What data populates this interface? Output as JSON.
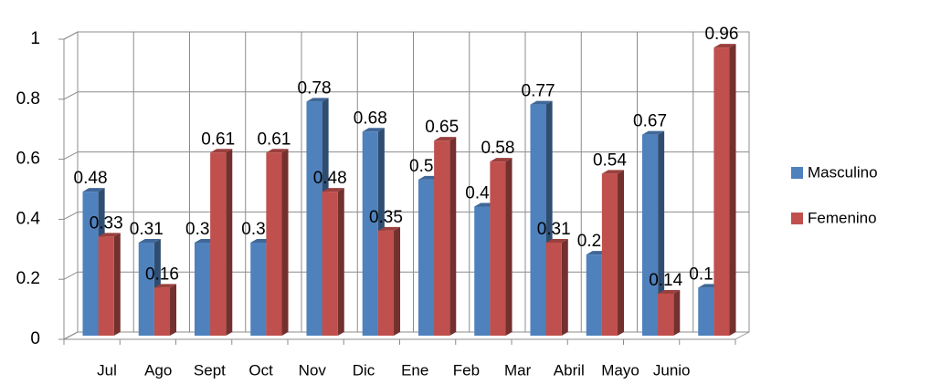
{
  "chart_data": {
    "type": "bar3d",
    "categories": [
      "Jul",
      "Ago",
      "Sept",
      "Oct",
      "Nov",
      "Dic",
      "Ene",
      "Feb",
      "Mar",
      "Abril",
      "Mayo",
      "Junio"
    ],
    "series": [
      {
        "name": "Masculino",
        "color": "#4f81bd",
        "values": [
          0.48,
          0.31,
          0.31,
          0.31,
          0.78,
          0.68,
          0.52,
          0.43,
          0.77,
          0.27,
          0.67,
          0.16
        ]
      },
      {
        "name": "Femenino",
        "color": "#c0504d",
        "values": [
          0.33,
          0.16,
          0.61,
          0.61,
          0.48,
          0.35,
          0.65,
          0.58,
          0.31,
          0.54,
          0.14,
          0.96
        ]
      }
    ],
    "ylim": [
      0,
      1
    ],
    "yticks": [
      0,
      0.2,
      0.4,
      0.6,
      0.8,
      1
    ],
    "grid": true,
    "legend": "right"
  }
}
